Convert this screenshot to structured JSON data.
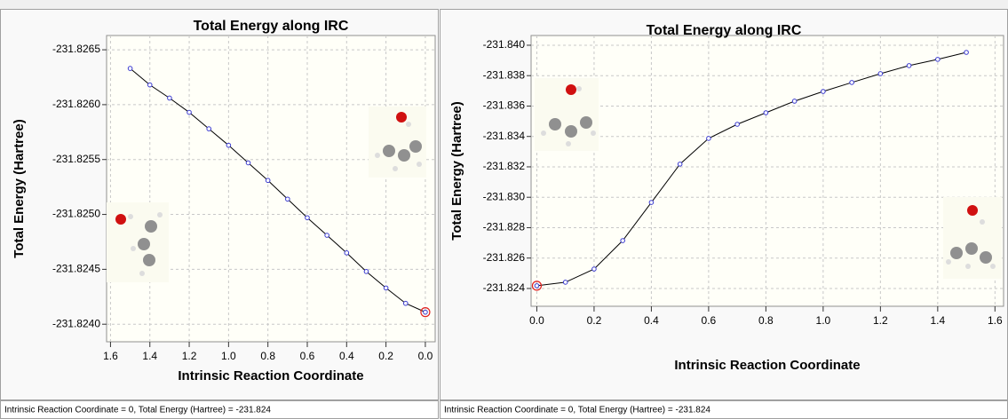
{
  "chart_data": [
    {
      "type": "line",
      "title": "Total Energy along IRC",
      "x_label": "Intrinsic Reaction Coordinate",
      "y_label": "Total Energy (Hartree)",
      "x": [
        0,
        0.1,
        0.2,
        0.3,
        0.4,
        0.5,
        0.6,
        0.7,
        0.8,
        0.9,
        1,
        1.1,
        1.2,
        1.3,
        1.4,
        1.5
      ],
      "values": [
        -231.82411,
        -231.82419,
        -231.82433,
        -231.82448,
        -231.82465,
        -231.82481,
        -231.82497,
        -231.82514,
        -231.82531,
        -231.82547,
        -231.82563,
        -231.82578,
        -231.82593,
        -231.82606,
        -231.82618,
        -231.82633
      ],
      "color": "#000000",
      "marker_color": "#3a3ad0",
      "highlight_index": 0,
      "highlight_color": "#e02020",
      "xlim": [
        1.62,
        -0.05
      ],
      "ylim": [
        -231.82384,
        -231.82663
      ],
      "xticks": [
        1.6,
        1.4,
        1.2,
        {
          "value": 1,
          "label": "1.0"
        },
        0.8,
        0.6,
        0.4,
        0.2,
        {
          "value": 0,
          "label": "0.0"
        }
      ],
      "yticks": [
        {
          "value": -231.824,
          "label": "-231.8240"
        },
        -231.8245,
        {
          "value": -231.825,
          "label": "-231.8250"
        },
        -231.8255,
        {
          "value": -231.826,
          "label": "-231.8260"
        },
        -231.8265
      ],
      "grid": true
    },
    {
      "type": "line",
      "title": "Total Energy along IRC",
      "x_label": "Intrinsic Reaction Coordinate",
      "y_label": "Total Energy (Hartree)",
      "x": [
        0,
        0.1,
        0.2,
        0.3,
        0.4,
        0.5,
        0.6,
        0.7,
        0.8,
        0.9,
        1,
        1.1,
        1.2,
        1.3,
        1.4,
        1.5
      ],
      "values": [
        -231.82418,
        -231.82441,
        -231.82528,
        -231.82715,
        -231.82966,
        -231.83218,
        -231.83387,
        -231.8348,
        -231.83556,
        -231.83632,
        -231.83696,
        -231.83755,
        -231.83813,
        -231.83866,
        -231.83907,
        -231.83953
      ],
      "color": "#000000",
      "marker_color": "#3a3ad0",
      "highlight_index": 0,
      "highlight_color": "#e02020",
      "xlim": [
        -0.02,
        1.63
      ],
      "ylim": [
        -231.82283,
        -231.84064
      ],
      "xticks": [
        {
          "value": 0,
          "label": "0.0"
        },
        0.2,
        0.4,
        0.6,
        0.8,
        {
          "value": 1,
          "label": "1.0"
        },
        1.2,
        1.4,
        1.6
      ],
      "yticks": [
        -231.824,
        -231.826,
        -231.828,
        {
          "value": -231.83,
          "label": "-231.830"
        },
        -231.832,
        -231.834,
        -231.836,
        -231.838,
        {
          "value": -231.84,
          "label": "-231.840"
        }
      ],
      "grid": true
    }
  ],
  "status_bar": [
    "Intrinsic Reaction Coordinate = 0, Total Energy (Hartree) = -231.824",
    "Intrinsic Reaction Coordinate = 0, Total Energy (Hartree) = -231.824"
  ]
}
